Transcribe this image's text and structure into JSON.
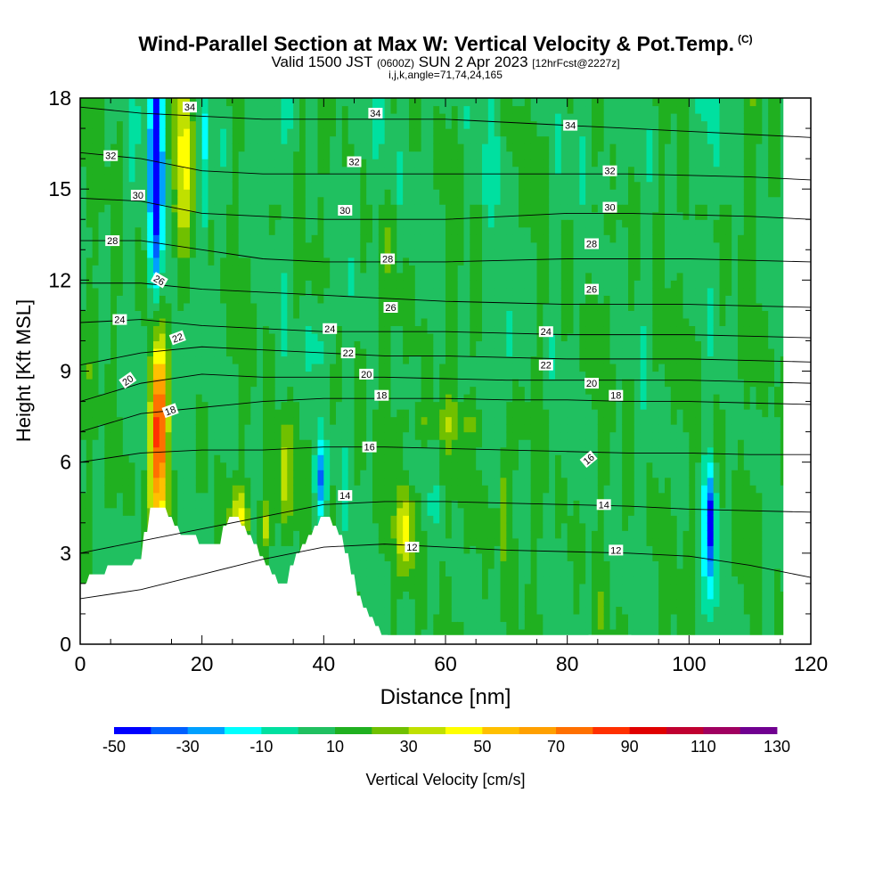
{
  "title": {
    "main": "Wind-Parallel Section at Max W: Vertical Velocity & Pot.Temp.",
    "copyright": "(C)",
    "valid_prefix": "Valid 1500 JST",
    "valid_zulu": "(0600Z)",
    "valid_date": "SUN 2 Apr 2023",
    "forecast": "[12hrFcst@2227z]",
    "params": "i,j,k,angle=71,74,24,165"
  },
  "chart_data": {
    "type": "heatmap",
    "xlabel": "Distance [nm]",
    "ylabel": "Height [Kft MSL]",
    "xlim": [
      0,
      120
    ],
    "ylim": [
      0,
      18
    ],
    "xticks": [
      0,
      20,
      40,
      60,
      80,
      100,
      120
    ],
    "yticks": [
      0,
      3,
      6,
      9,
      12,
      15,
      18
    ],
    "colorbar": {
      "label": "Vertical Velocity [cm/s]",
      "ticks": [
        -50,
        -30,
        -10,
        10,
        30,
        50,
        70,
        90,
        110,
        130
      ],
      "min": -50,
      "step": 10,
      "colors": [
        "#0000ff",
        "#0060ff",
        "#00a0ff",
        "#00ffff",
        "#00e0a0",
        "#20c060",
        "#20b020",
        "#70c000",
        "#c0e000",
        "#ffff00",
        "#ffc000",
        "#ffa000",
        "#ff7000",
        "#ff3000",
        "#e00000",
        "#c00030",
        "#a00060",
        "#700090"
      ]
    },
    "terrain": [
      [
        0,
        2.0
      ],
      [
        1,
        2.0
      ],
      [
        1.5,
        2.3
      ],
      [
        4,
        2.3
      ],
      [
        4.5,
        2.6
      ],
      [
        8.5,
        2.6
      ],
      [
        9,
        2.8
      ],
      [
        10,
        2.8
      ],
      [
        10.5,
        3.7
      ],
      [
        11,
        3.7
      ],
      [
        11.5,
        4.5
      ],
      [
        14,
        4.5
      ],
      [
        14.5,
        4.2
      ],
      [
        15,
        4.2
      ],
      [
        15.5,
        3.9
      ],
      [
        16,
        3.9
      ],
      [
        16.5,
        3.6
      ],
      [
        19,
        3.6
      ],
      [
        19.5,
        3.3
      ],
      [
        23,
        3.3
      ],
      [
        23.5,
        3.9
      ],
      [
        24,
        3.9
      ],
      [
        24.5,
        4.2
      ],
      [
        26,
        4.2
      ],
      [
        26.5,
        3.9
      ],
      [
        27,
        3.9
      ],
      [
        27.5,
        3.6
      ],
      [
        28,
        3.6
      ],
      [
        28.5,
        3.3
      ],
      [
        29,
        3.3
      ],
      [
        29.5,
        2.9
      ],
      [
        30,
        2.9
      ],
      [
        30.5,
        2.6
      ],
      [
        31,
        2.6
      ],
      [
        31.5,
        2.3
      ],
      [
        32,
        2.3
      ],
      [
        32.5,
        2.0
      ],
      [
        34,
        2.0
      ],
      [
        34.5,
        2.6
      ],
      [
        35,
        2.6
      ],
      [
        35.5,
        3.0
      ],
      [
        36,
        3.0
      ],
      [
        36.5,
        3.3
      ],
      [
        37,
        3.3
      ],
      [
        37.5,
        3.6
      ],
      [
        38,
        3.6
      ],
      [
        38.5,
        3.9
      ],
      [
        39,
        3.9
      ],
      [
        39.5,
        4.2
      ],
      [
        41,
        4.2
      ],
      [
        41.5,
        3.9
      ],
      [
        42,
        3.9
      ],
      [
        42.5,
        3.6
      ],
      [
        43,
        3.6
      ],
      [
        43.5,
        3.0
      ],
      [
        44,
        3.0
      ],
      [
        44.5,
        2.3
      ],
      [
        45,
        2.3
      ],
      [
        45.5,
        1.6
      ],
      [
        46,
        1.6
      ],
      [
        46.5,
        1.2
      ],
      [
        47,
        1.2
      ],
      [
        47.5,
        0.9
      ],
      [
        48,
        0.9
      ],
      [
        48.5,
        0.6
      ],
      [
        49,
        0.6
      ],
      [
        49.5,
        0.3
      ],
      [
        50.5,
        0.3
      ],
      [
        51,
        0.0
      ],
      [
        83,
        0.0
      ],
      [
        83.5,
        0.3
      ],
      [
        90.5,
        0.3
      ],
      [
        91,
        0.0
      ],
      [
        120,
        0.0
      ]
    ],
    "features": [
      {
        "x": 13,
        "y": 7.0,
        "sx": 1.0,
        "sy": 2.2,
        "amp": 85
      },
      {
        "x": 17,
        "y": 16.0,
        "sx": 1.3,
        "sy": 2.8,
        "amp": 30
      },
      {
        "x": 12.5,
        "y": 15.5,
        "sx": 0.8,
        "sy": 3.2,
        "amp": -60
      },
      {
        "x": 20.5,
        "y": 15.5,
        "sx": 0.6,
        "sy": 2.5,
        "amp": -20
      },
      {
        "x": 33.5,
        "y": 5.5,
        "sx": 0.9,
        "sy": 1.3,
        "amp": 30
      },
      {
        "x": 26,
        "y": 4.3,
        "sx": 1.2,
        "sy": 0.6,
        "amp": 25
      },
      {
        "x": 39.5,
        "y": 5.4,
        "sx": 0.7,
        "sy": 1.0,
        "amp": -40
      },
      {
        "x": 30.5,
        "y": 4.0,
        "sx": 0.8,
        "sy": 0.6,
        "amp": 25
      },
      {
        "x": 53.5,
        "y": 3.8,
        "sx": 1.0,
        "sy": 1.0,
        "amp": 35
      },
      {
        "x": 69.5,
        "y": 4.5,
        "sx": 0.6,
        "sy": 1.3,
        "amp": 25
      },
      {
        "x": 103.5,
        "y": 4.1,
        "sx": 0.7,
        "sy": 1.3,
        "amp": -50
      },
      {
        "x": 103.5,
        "y": 1.5,
        "sx": 0.8,
        "sy": 1.0,
        "amp": -10
      },
      {
        "x": 16,
        "y": 9.0,
        "sx": 1.0,
        "sy": 2.5,
        "amp": -15
      },
      {
        "x": 39,
        "y": 10.0,
        "sx": 1.8,
        "sy": 1.0,
        "amp": -15
      },
      {
        "x": 71,
        "y": 10.0,
        "sx": 1.5,
        "sy": 1.0,
        "amp": -15
      },
      {
        "x": 60,
        "y": 7.3,
        "sx": 6.0,
        "sy": 0.5,
        "amp": 12
      }
    ],
    "isentropes": [
      {
        "theta": 12,
        "x": [
          0,
          10,
          20,
          30,
          40,
          50,
          60,
          70,
          80,
          90,
          100,
          110,
          120
        ],
        "y": [
          1.5,
          1.8,
          2.3,
          2.8,
          3.2,
          3.3,
          3.2,
          3.1,
          3.05,
          3.0,
          2.9,
          2.6,
          2.2
        ]
      },
      {
        "theta": 14,
        "x": [
          0,
          10,
          20,
          30,
          40,
          50,
          60,
          70,
          80,
          90,
          100,
          110,
          120
        ],
        "y": [
          3.0,
          3.4,
          3.8,
          4.2,
          4.6,
          4.7,
          4.7,
          4.65,
          4.6,
          4.55,
          4.45,
          4.4,
          4.35
        ]
      },
      {
        "theta": 16,
        "x": [
          0,
          10,
          20,
          30,
          40,
          50,
          60,
          70,
          80,
          90,
          100,
          110,
          120
        ],
        "y": [
          6.0,
          6.3,
          6.4,
          6.4,
          6.5,
          6.5,
          6.45,
          6.4,
          6.35,
          6.3,
          6.3,
          6.25,
          6.25
        ]
      },
      {
        "theta": 18,
        "x": [
          0,
          10,
          20,
          30,
          40,
          50,
          60,
          70,
          80,
          90,
          100,
          110,
          120
        ],
        "y": [
          7.0,
          7.6,
          7.8,
          8.0,
          8.1,
          8.1,
          8.1,
          8.05,
          8.05,
          8.0,
          8.0,
          7.95,
          7.9
        ]
      },
      {
        "theta": 20,
        "x": [
          0,
          10,
          20,
          30,
          40,
          50,
          60,
          70,
          80,
          90,
          100,
          110,
          120
        ],
        "y": [
          8.0,
          8.6,
          8.9,
          8.8,
          8.8,
          8.8,
          8.75,
          8.7,
          8.7,
          8.7,
          8.7,
          8.65,
          8.6
        ]
      },
      {
        "theta": 22,
        "x": [
          0,
          10,
          20,
          30,
          40,
          50,
          60,
          70,
          80,
          90,
          100,
          110,
          120
        ],
        "y": [
          9.2,
          9.6,
          9.8,
          9.7,
          9.6,
          9.5,
          9.5,
          9.45,
          9.4,
          9.4,
          9.4,
          9.35,
          9.3
        ]
      },
      {
        "theta": 24,
        "x": [
          0,
          10,
          20,
          30,
          40,
          50,
          60,
          70,
          80,
          90,
          100,
          110,
          120
        ],
        "y": [
          10.6,
          10.7,
          10.5,
          10.4,
          10.3,
          10.3,
          10.3,
          10.25,
          10.2,
          10.2,
          10.2,
          10.15,
          10.1
        ]
      },
      {
        "theta": 26,
        "x": [
          0,
          10,
          20,
          30,
          40,
          50,
          60,
          70,
          80,
          90,
          100,
          110,
          120
        ],
        "y": [
          11.9,
          11.9,
          11.7,
          11.6,
          11.5,
          11.4,
          11.3,
          11.25,
          11.2,
          11.2,
          11.2,
          11.15,
          11.1
        ]
      },
      {
        "theta": 28,
        "x": [
          0,
          10,
          20,
          30,
          40,
          50,
          60,
          70,
          80,
          90,
          100,
          110,
          120
        ],
        "y": [
          13.3,
          13.3,
          13.0,
          12.7,
          12.6,
          12.6,
          12.6,
          12.65,
          12.7,
          12.7,
          12.7,
          12.65,
          12.6
        ]
      },
      {
        "theta": 30,
        "x": [
          0,
          10,
          20,
          30,
          40,
          50,
          60,
          70,
          80,
          90,
          100,
          110,
          120
        ],
        "y": [
          14.7,
          14.6,
          14.2,
          14.1,
          14.0,
          14.0,
          14.0,
          14.1,
          14.2,
          14.2,
          14.15,
          14.1,
          14.0
        ]
      },
      {
        "theta": 32,
        "x": [
          0,
          10,
          20,
          30,
          40,
          50,
          60,
          70,
          80,
          90,
          100,
          110,
          120
        ],
        "y": [
          16.2,
          16.0,
          15.6,
          15.5,
          15.5,
          15.5,
          15.5,
          15.5,
          15.5,
          15.5,
          15.45,
          15.4,
          15.3
        ]
      },
      {
        "theta": 34,
        "x": [
          0,
          10,
          20,
          30,
          40,
          50,
          60,
          70,
          80,
          90,
          100,
          110,
          120
        ],
        "y": [
          17.7,
          17.5,
          17.4,
          17.3,
          17.3,
          17.3,
          17.3,
          17.2,
          17.1,
          17.0,
          16.9,
          16.8,
          16.7
        ]
      }
    ],
    "contour_labels": [
      {
        "text": "34",
        "x": 18,
        "y": 17.7,
        "angle": 0
      },
      {
        "text": "34",
        "x": 48.5,
        "y": 17.5,
        "angle": 0
      },
      {
        "text": "34",
        "x": 80.5,
        "y": 17.1,
        "angle": 0
      },
      {
        "text": "32",
        "x": 5,
        "y": 16.1,
        "angle": 0
      },
      {
        "text": "32",
        "x": 45,
        "y": 15.9,
        "angle": 0
      },
      {
        "text": "32",
        "x": 87,
        "y": 15.6,
        "angle": 0
      },
      {
        "text": "30",
        "x": 9.5,
        "y": 14.8,
        "angle": 0
      },
      {
        "text": "30",
        "x": 43.5,
        "y": 14.3,
        "angle": 0
      },
      {
        "text": "30",
        "x": 87,
        "y": 14.4,
        "angle": 0
      },
      {
        "text": "28",
        "x": 5.3,
        "y": 13.3,
        "angle": 0
      },
      {
        "text": "28",
        "x": 50.5,
        "y": 12.7,
        "angle": 0
      },
      {
        "text": "28",
        "x": 84,
        "y": 13.2,
        "angle": 0
      },
      {
        "text": "26",
        "x": 13,
        "y": 12.0,
        "angle": 30
      },
      {
        "text": "26",
        "x": 51,
        "y": 11.1,
        "angle": 0
      },
      {
        "text": "26",
        "x": 84,
        "y": 11.7,
        "angle": 0
      },
      {
        "text": "24",
        "x": 6.5,
        "y": 10.7,
        "angle": 0
      },
      {
        "text": "24",
        "x": 41,
        "y": 10.4,
        "angle": 0
      },
      {
        "text": "24",
        "x": 76.5,
        "y": 10.3,
        "angle": 0
      },
      {
        "text": "22",
        "x": 16,
        "y": 10.1,
        "angle": -20
      },
      {
        "text": "22",
        "x": 44,
        "y": 9.6,
        "angle": 0
      },
      {
        "text": "22",
        "x": 76.5,
        "y": 9.2,
        "angle": 0
      },
      {
        "text": "20",
        "x": 7.8,
        "y": 8.7,
        "angle": -35
      },
      {
        "text": "20",
        "x": 47,
        "y": 8.9,
        "angle": 0
      },
      {
        "text": "20",
        "x": 84,
        "y": 8.6,
        "angle": 0
      },
      {
        "text": "18",
        "x": 14.8,
        "y": 7.7,
        "angle": -20
      },
      {
        "text": "18",
        "x": 49.5,
        "y": 8.2,
        "angle": 0
      },
      {
        "text": "18",
        "x": 88,
        "y": 8.2,
        "angle": 0
      },
      {
        "text": "16",
        "x": 47.5,
        "y": 6.5,
        "angle": 0
      },
      {
        "text": "16",
        "x": 83.5,
        "y": 6.1,
        "angle": -40
      },
      {
        "text": "14",
        "x": 43.5,
        "y": 4.9,
        "angle": 0
      },
      {
        "text": "14",
        "x": 86,
        "y": 4.6,
        "angle": 0
      },
      {
        "text": "12",
        "x": 54.5,
        "y": 3.2,
        "angle": 0
      },
      {
        "text": "12",
        "x": 88,
        "y": 3.1,
        "angle": 0
      }
    ]
  }
}
